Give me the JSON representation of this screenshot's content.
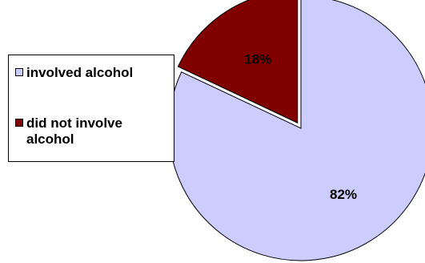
{
  "chart_data": {
    "type": "pie",
    "title": "",
    "legend_position": "left",
    "exploded": true,
    "slices": [
      {
        "label": "involved alcohol",
        "value": 82,
        "display": "82%",
        "color": "#ccccff"
      },
      {
        "label": "did not involve alcohol",
        "value": 18,
        "display": "18%",
        "color": "#800000"
      }
    ]
  }
}
